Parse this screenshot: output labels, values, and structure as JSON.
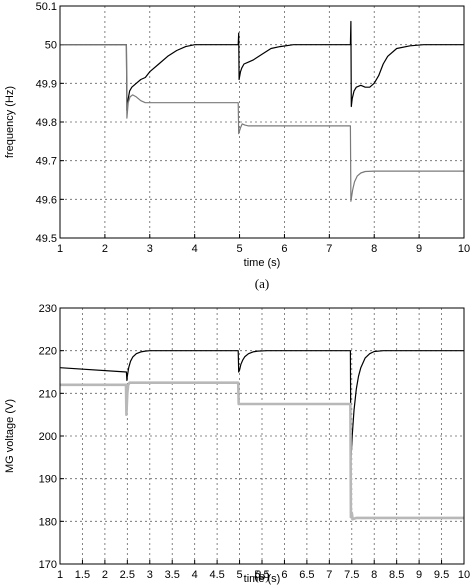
{
  "chart_data": [
    {
      "type": "line",
      "caption": "(a)",
      "xlabel": "time (s)",
      "ylabel": "frequency (Hz)",
      "xlim": [
        1,
        10
      ],
      "ylim": [
        49.5,
        50.1
      ],
      "xticks": [
        "1",
        "2",
        "3",
        "4",
        "5",
        "6",
        "7",
        "8",
        "9",
        "10"
      ],
      "yticks": [
        "49.5",
        "49.6",
        "49.7",
        "49.8",
        "49.9",
        "50",
        "50.1"
      ],
      "grid": true,
      "series": [
        {
          "color": "#000000",
          "width": 1.2,
          "x": [
            1,
            2.48,
            2.49,
            2.52,
            2.55,
            2.6,
            2.7,
            2.8,
            2.9,
            3.0,
            3.2,
            3.4,
            3.6,
            3.8,
            4.0,
            4.2,
            4.5,
            4.97,
            4.98,
            4.99,
            5.02,
            5.05,
            5.1,
            5.2,
            5.3,
            5.5,
            5.7,
            5.9,
            6.2,
            6.6,
            7.0,
            7.47,
            7.48,
            7.49,
            7.51,
            7.55,
            7.6,
            7.7,
            7.8,
            7.9,
            8.0,
            8.1,
            8.2,
            8.3,
            8.5,
            8.8,
            9.1,
            9.4,
            10
          ],
          "y": [
            50.0,
            50.0,
            49.83,
            49.86,
            49.88,
            49.89,
            49.9,
            49.91,
            49.915,
            49.93,
            49.95,
            49.97,
            49.985,
            49.995,
            50.0,
            50.0,
            50.0,
            50.0,
            50.03,
            49.91,
            49.93,
            49.94,
            49.95,
            49.955,
            49.96,
            49.975,
            49.99,
            49.995,
            50.0,
            50.0,
            50.0,
            50.0,
            50.06,
            49.84,
            49.86,
            49.88,
            49.89,
            49.895,
            49.89,
            49.89,
            49.9,
            49.92,
            49.95,
            49.97,
            49.99,
            49.997,
            50.0,
            50.0,
            50.0
          ]
        },
        {
          "color": "#7a7a7a",
          "width": 1.2,
          "x": [
            1,
            2.48,
            2.49,
            2.52,
            2.56,
            2.62,
            2.7,
            2.8,
            2.9,
            3.0,
            3.2,
            4.97,
            4.98,
            5.02,
            5.06,
            5.12,
            5.2,
            5.3,
            7.47,
            7.48,
            7.52,
            7.56,
            7.62,
            7.7,
            7.8,
            8.0,
            10
          ],
          "y": [
            50.0,
            50.0,
            49.81,
            49.85,
            49.865,
            49.87,
            49.865,
            49.855,
            49.85,
            49.85,
            49.85,
            49.85,
            49.77,
            49.785,
            49.795,
            49.792,
            49.79,
            49.79,
            49.79,
            49.595,
            49.625,
            49.645,
            49.66,
            49.668,
            49.672,
            49.673,
            49.673
          ]
        }
      ]
    },
    {
      "type": "line",
      "caption": "(b)",
      "xlabel": "time (s)",
      "ylabel": "MG voltage (V)",
      "xlim": [
        1,
        10
      ],
      "ylim": [
        170,
        230
      ],
      "xticks": [
        "1",
        "1.5",
        "2",
        "2.5",
        "3",
        "3.5",
        "4",
        "4.5",
        "5",
        "5.5",
        "6",
        "6.5",
        "7",
        "7.5",
        "8",
        "8.5",
        "9",
        "9.5",
        "10"
      ],
      "yticks": [
        "170",
        "180",
        "190",
        "200",
        "210",
        "220",
        "230"
      ],
      "grid": true,
      "series": [
        {
          "color": "#000000",
          "width": 1.2,
          "x": [
            1,
            2.48,
            2.49,
            2.5,
            2.53,
            2.57,
            2.62,
            2.7,
            2.8,
            2.9,
            3.0,
            3.2,
            4.97,
            4.98,
            5.0,
            5.03,
            5.07,
            5.12,
            5.2,
            5.3,
            5.4,
            5.6,
            7.47,
            7.48,
            7.51,
            7.55,
            7.6,
            7.65,
            7.7,
            7.8,
            7.9,
            8.0,
            8.2,
            10
          ],
          "y": [
            216,
            215,
            213,
            214,
            216,
            217.5,
            218.5,
            219.3,
            219.7,
            219.9,
            220,
            220,
            220,
            215,
            215.5,
            216.8,
            217.8,
            218.6,
            219.3,
            219.7,
            219.9,
            220,
            220,
            194,
            200,
            206,
            211,
            214,
            216,
            218.3,
            219.3,
            219.8,
            220,
            220
          ]
        },
        {
          "color": "#b8b8b8",
          "width": 2.6,
          "x": [
            1,
            2.47,
            2.48,
            2.5,
            2.52,
            2.55,
            4.97,
            4.98,
            5.02,
            7.47,
            7.48,
            7.5,
            7.52,
            7.6,
            10
          ],
          "y": [
            212,
            212,
            205,
            210,
            212,
            212.5,
            212.5,
            207.5,
            207.5,
            207.5,
            181,
            182,
            180.5,
            180.8,
            180.8
          ]
        }
      ]
    }
  ]
}
